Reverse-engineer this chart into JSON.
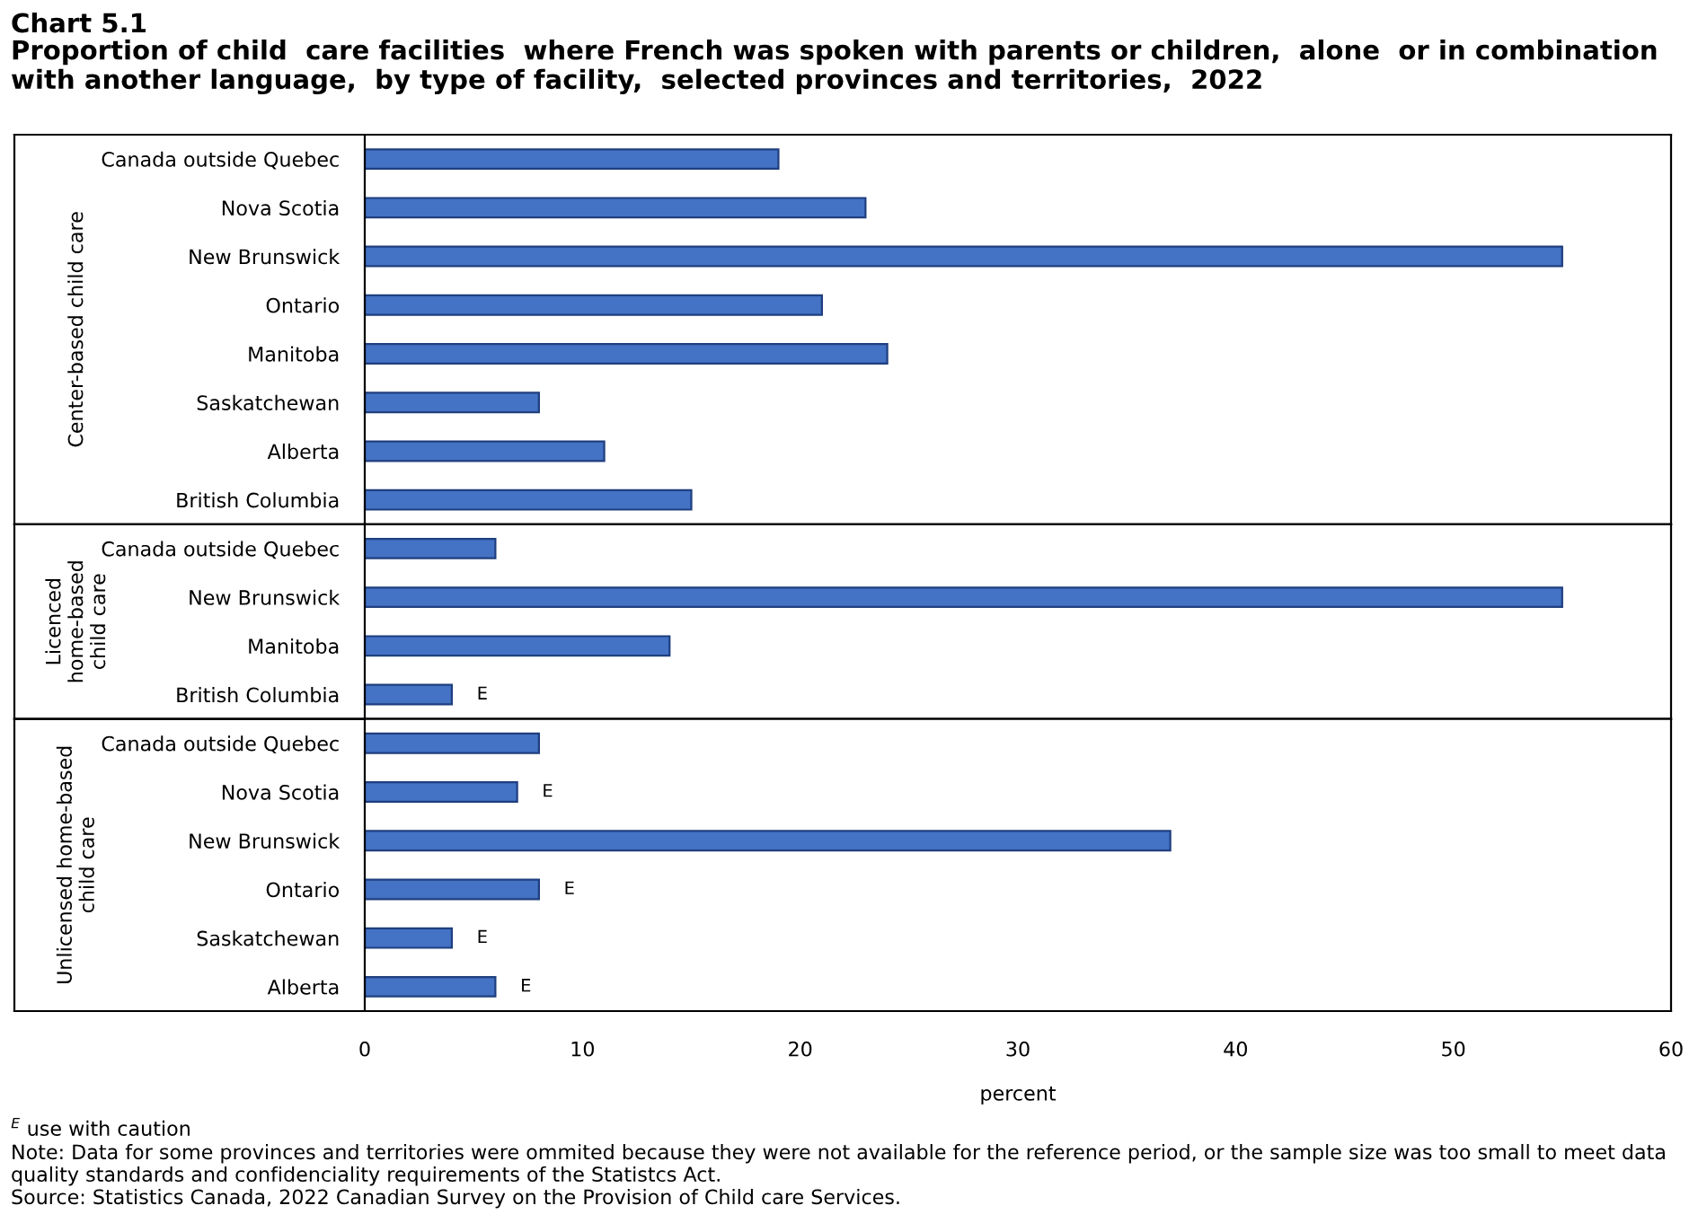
{
  "chart_data": [
    {
      "type": "bar",
      "orientation": "horizontal",
      "title": "Chart 5.1",
      "subtitle": "Proportion of child  care facilities  where French was spoken with parents or children,  alone  or in combination with another language,  by type of facility,  selected provinces and territories,  2022",
      "ylabel": "Center-based child care",
      "categories": [
        "Canada outside Quebec",
        "Nova Scotia",
        "New Brunswick",
        "Ontario",
        "Manitoba",
        "Saskatchewan",
        "Alberta",
        "British Columbia"
      ],
      "values": [
        19,
        23,
        55,
        21,
        24,
        8,
        11,
        15
      ],
      "color": "#4472c4",
      "xlim": [
        0,
        60
      ],
      "tick_labels": "y",
      "grid": false
    },
    {
      "type": "bar",
      "orientation": "horizontal",
      "ylabel": "Licenced\nhome-based\nchild care",
      "categories": [
        "Canada outside Quebec",
        "New Brunswick",
        "Manitoba",
        "British Columbia"
      ],
      "values": [
        6,
        55,
        14,
        4
      ],
      "value_labels": [
        null,
        null,
        null,
        "E"
      ],
      "color": "#4472c4",
      "xlim": [
        0,
        60
      ],
      "tick_labels": "y",
      "grid": false
    },
    {
      "type": "bar",
      "orientation": "horizontal",
      "ylabel": "Unlicensed home-based\nchild care",
      "xlabel": "percent",
      "categories": [
        "Canada outside Quebec",
        "Nova Scotia",
        "New Brunswick",
        "Ontario",
        "Saskatchewan",
        "Alberta"
      ],
      "values": [
        8,
        7,
        37,
        8,
        4,
        6
      ],
      "value_labels": [
        null,
        "E",
        null,
        "E",
        "E",
        "E"
      ],
      "color": "#4472c4",
      "xlim": [
        0,
        60
      ],
      "xticks": [
        0,
        10,
        20,
        30,
        40,
        50,
        60
      ],
      "grid": false,
      "annotations": [
        "$^{E}$ use with caution",
        "Note: Data for some provinces and territories were ommited because they were not available for the reference period, or the sample size was too small to meet data quality standards and confidenciality requirements of the Statistcs Act.",
        "Source: Statistics Canada, 2022 Canadian Survey on the Provision of Child care Services."
      ]
    }
  ]
}
